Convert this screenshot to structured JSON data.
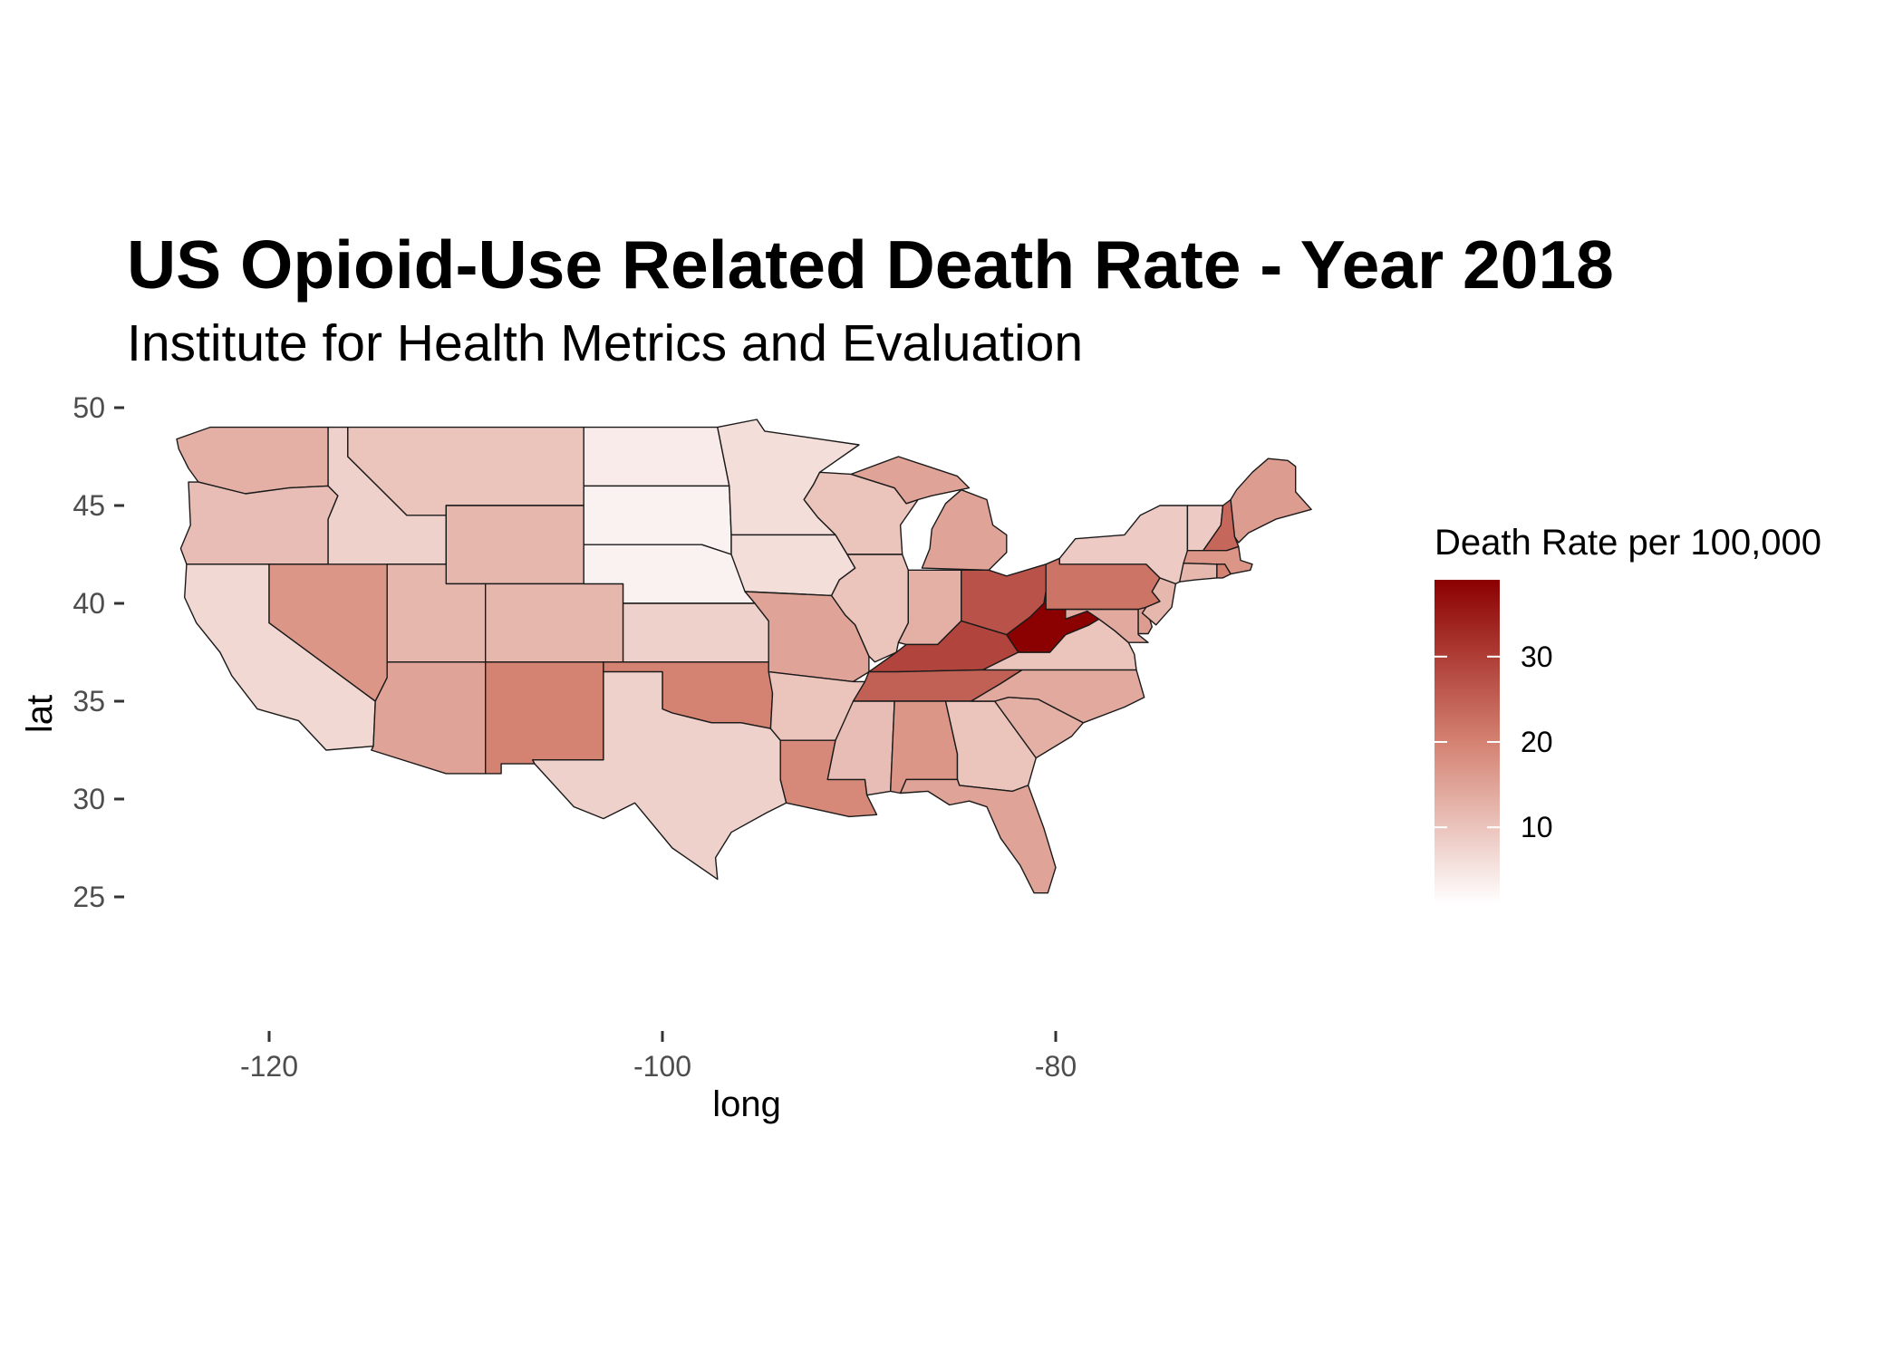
{
  "chart_data": {
    "type": "choropleth-map",
    "title": "US Opioid-Use Related Death Rate - Year 2018",
    "subtitle": "Institute for Health Metrics and Evaluation",
    "xlabel": "long",
    "ylabel": "lat",
    "x_ticks": [
      "-120",
      "-100",
      "-80"
    ],
    "y_ticks": [
      "50",
      "45",
      "40",
      "35",
      "30",
      "25"
    ],
    "xlim": [
      -127,
      -64
    ],
    "ylim": [
      19,
      51
    ],
    "grid": false,
    "legend": {
      "title": "Death Rate per 100,000",
      "placement": "right",
      "labels": [
        "30",
        "20",
        "10"
      ],
      "range": [
        1,
        39
      ],
      "color_low": "#ffffff",
      "color_high": "#8b0000"
    },
    "regions": [
      {
        "name": "Washington",
        "value": 13
      },
      {
        "name": "Oregon",
        "value": 11
      },
      {
        "name": "California",
        "value": 7
      },
      {
        "name": "Nevada",
        "value": 17
      },
      {
        "name": "Idaho",
        "value": 8
      },
      {
        "name": "Montana",
        "value": 10
      },
      {
        "name": "Wyoming",
        "value": 12
      },
      {
        "name": "Utah",
        "value": 12
      },
      {
        "name": "Colorado",
        "value": 12
      },
      {
        "name": "Arizona",
        "value": 15
      },
      {
        "name": "New Mexico",
        "value": 20
      },
      {
        "name": "North Dakota",
        "value": 4
      },
      {
        "name": "South Dakota",
        "value": 3
      },
      {
        "name": "Nebraska",
        "value": 3
      },
      {
        "name": "Kansas",
        "value": 8
      },
      {
        "name": "Oklahoma",
        "value": 20
      },
      {
        "name": "Texas",
        "value": 8
      },
      {
        "name": "Minnesota",
        "value": 6
      },
      {
        "name": "Iowa",
        "value": 6
      },
      {
        "name": "Missouri",
        "value": 15
      },
      {
        "name": "Arkansas",
        "value": 10
      },
      {
        "name": "Louisiana",
        "value": 19
      },
      {
        "name": "Wisconsin",
        "value": 10
      },
      {
        "name": "Illinois",
        "value": 10
      },
      {
        "name": "Michigan",
        "value": 15
      },
      {
        "name": "Indiana",
        "value": 13
      },
      {
        "name": "Ohio",
        "value": 27
      },
      {
        "name": "Kentucky",
        "value": 29
      },
      {
        "name": "Tennessee",
        "value": 25
      },
      {
        "name": "Mississippi",
        "value": 11
      },
      {
        "name": "Alabama",
        "value": 17
      },
      {
        "name": "Georgia",
        "value": 10
      },
      {
        "name": "Florida",
        "value": 15
      },
      {
        "name": "South Carolina",
        "value": 13
      },
      {
        "name": "North Carolina",
        "value": 14
      },
      {
        "name": "Virginia",
        "value": 10
      },
      {
        "name": "West Virginia",
        "value": 39
      },
      {
        "name": "Pennsylvania",
        "value": 22
      },
      {
        "name": "New York",
        "value": 9
      },
      {
        "name": "Vermont",
        "value": 9
      },
      {
        "name": "New Hampshire",
        "value": 24
      },
      {
        "name": "Maine",
        "value": 16
      },
      {
        "name": "Massachusetts",
        "value": 17
      },
      {
        "name": "Connecticut",
        "value": 12
      },
      {
        "name": "Rhode Island",
        "value": 20
      },
      {
        "name": "New Jersey",
        "value": 12
      },
      {
        "name": "Delaware",
        "value": 16
      },
      {
        "name": "Maryland",
        "value": 14
      }
    ]
  }
}
